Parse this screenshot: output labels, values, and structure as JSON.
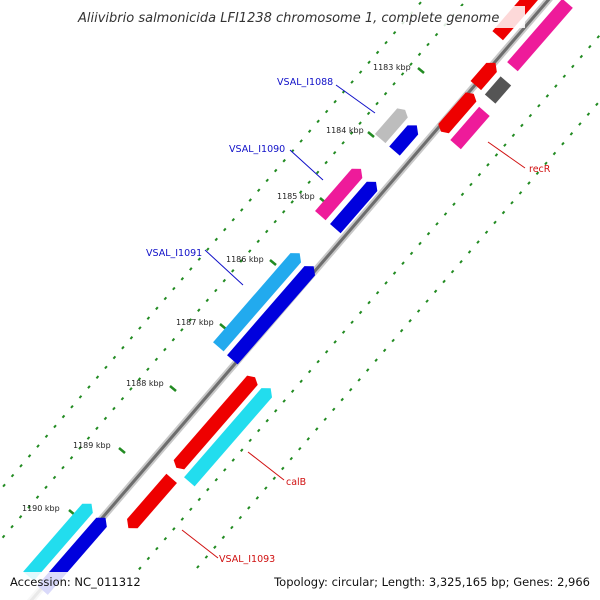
{
  "title": "Aliivibrio salmonicida LFI1238 chromosome 1, complete genome",
  "footer": {
    "accession": "Accession: NC_011312",
    "topology": "Topology: circular; Length: 3,325,165 bp; Genes: 2,966"
  },
  "ticks": [
    "1183 kbp",
    "1184 kbp",
    "1185 kbp",
    "1186 kbp",
    "1187 kbp",
    "1188 kbp",
    "1189 kbp",
    "1190 kbp"
  ],
  "genes": [
    {
      "name": "VSAL_I1088",
      "color": "#1010c8"
    },
    {
      "name": "VSAL_I1090",
      "color": "#1010c8"
    },
    {
      "name": "VSAL_I1091",
      "color": "#1010c8"
    },
    {
      "name": "recR",
      "color": "#d01010"
    },
    {
      "name": "calB",
      "color": "#d01010"
    },
    {
      "name": "VSAL_I1093",
      "color": "#d01010"
    }
  ],
  "colors": {
    "backbone": "#808080",
    "tick": "#228b22",
    "cds_red": "#ee0000",
    "cds_blue": "#0000dd",
    "cds_pink": "#ee1b9a",
    "cds_cyan": "#22ddee",
    "cds_skyblue": "#22aaee",
    "cds_gray": "#bdbdbd",
    "cds_darkgray": "#555555"
  }
}
